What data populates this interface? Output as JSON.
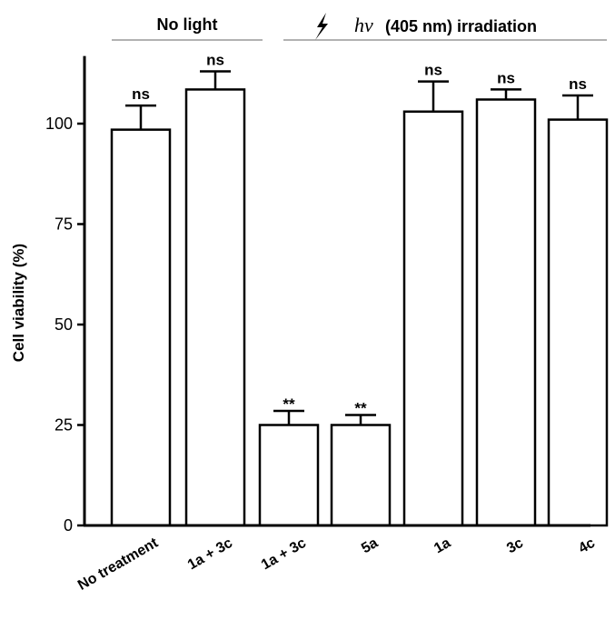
{
  "chart_data": {
    "type": "bar",
    "categories": [
      "No treatment",
      "1a + 3c",
      "1a + 3c",
      "5a",
      "1a",
      "3c",
      "4c"
    ],
    "values": [
      98.5,
      108.5,
      25,
      25,
      103,
      106,
      101
    ],
    "errors": [
      6,
      4.5,
      3.5,
      2.5,
      7.5,
      2.5,
      6
    ],
    "significance": [
      "ns",
      "ns",
      "**",
      "**",
      "ns",
      "ns",
      "ns"
    ],
    "ylabel": "Cell viability (%)",
    "xlabel": "",
    "ylim": [
      0,
      120
    ],
    "yticks": [
      0,
      25,
      50,
      75,
      100
    ],
    "grid": false,
    "bar_fill": "#ffffff",
    "bar_stroke": "#000000",
    "groups": [
      {
        "label": "No light",
        "first_index": 0,
        "last_index": 1
      },
      {
        "prefix": "hν",
        "label": "(405 nm) irradiation",
        "first_index": 2,
        "last_index": 6,
        "icon": "lightning-icon"
      }
    ]
  }
}
